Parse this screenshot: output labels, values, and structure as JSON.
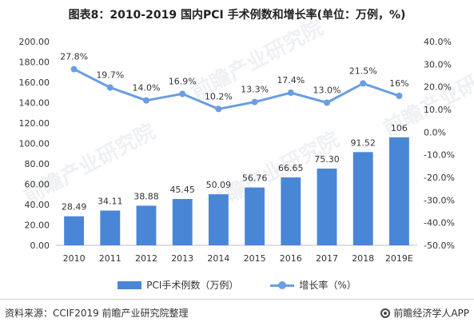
{
  "title": "图表8：2010-2019 国内PCI 手术例数和增长率(单位：万例，%)",
  "watermark": "前瞻产业研究院",
  "source": "资料来源：CCIF2019 前瞻产业研究院整理",
  "brand": "前瞻经济学人APP",
  "legend": {
    "bar_label": "PCI手术例数（万例）",
    "line_label": "增长率（%）"
  },
  "colors": {
    "bar": "#4a86d6",
    "line": "#6a9de2"
  },
  "chart_data": {
    "type": "bar",
    "categories": [
      "2010",
      "2011",
      "2012",
      "2013",
      "2014",
      "2015",
      "2016",
      "2017",
      "2018",
      "2019E"
    ],
    "series": [
      {
        "name": "PCI手术例数（万例）",
        "type": "bar",
        "axis": "left",
        "values": [
          28.49,
          34.11,
          38.88,
          45.45,
          50.09,
          56.76,
          66.65,
          75.3,
          91.52,
          106
        ],
        "labels": [
          "28.49",
          "34.11",
          "38.88",
          "45.45",
          "50.09",
          "56.76",
          "66.65",
          "75.30",
          "91.52",
          "106"
        ]
      },
      {
        "name": "增长率（%）",
        "type": "line",
        "axis": "right",
        "values": [
          27.8,
          19.7,
          14.0,
          16.9,
          10.2,
          13.3,
          17.4,
          13.0,
          21.5,
          16
        ],
        "labels": [
          "27.8%",
          "19.7%",
          "14.0%",
          "16.9%",
          "10.2%",
          "13.3%",
          "17.4%",
          "13.0%",
          "21.5%",
          "16%"
        ]
      }
    ],
    "y_left": {
      "min": 0,
      "max": 200,
      "step": 20,
      "ticks": [
        "0.00",
        "20.00",
        "40.00",
        "60.00",
        "80.00",
        "100.00",
        "120.00",
        "140.00",
        "160.00",
        "180.00",
        "200.00"
      ]
    },
    "y_right": {
      "min": -50,
      "max": 40,
      "step": 10,
      "ticks": [
        "-50.0%",
        "-40.0%",
        "-30.0%",
        "-20.0%",
        "-10.0%",
        "0.0%",
        "10.0%",
        "20.0%",
        "30.0%",
        "40.0%"
      ]
    },
    "grid": false,
    "legend_position": "bottom"
  }
}
